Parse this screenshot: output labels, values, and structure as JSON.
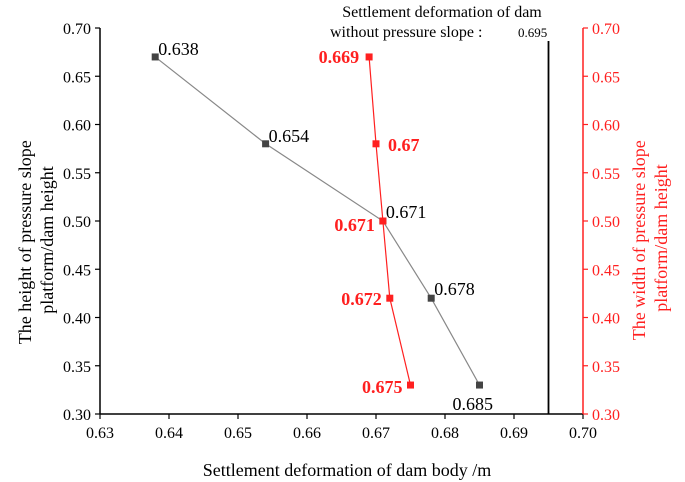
{
  "colors": {
    "left_axis": "#000000",
    "right_axis": "#ff2020",
    "black_series_line": "#888888",
    "black_series_marker": "#444444",
    "red_series": "#ff2020",
    "reference_line": "#000000"
  },
  "chart_data": {
    "type": "line",
    "xlabel": "Settlement deformation of dam body /m",
    "ylabel_left": "The height of pressure slope platform/dam height",
    "ylabel_right": "The width of pressure slope platform/dam height",
    "xlim": [
      0.63,
      0.7
    ],
    "ylim_left": [
      0.3,
      0.7
    ],
    "ylim_right": [
      0.3,
      0.7
    ],
    "x_ticks": [
      "0.63",
      "0.64",
      "0.65",
      "0.66",
      "0.67",
      "0.68",
      "0.69",
      "0.70"
    ],
    "y_ticks_left": [
      "0.30",
      "0.35",
      "0.40",
      "0.45",
      "0.50",
      "0.55",
      "0.60",
      "0.65",
      "0.70"
    ],
    "y_ticks_right": [
      "0.30",
      "0.35",
      "0.40",
      "0.45",
      "0.50",
      "0.55",
      "0.60",
      "0.65",
      "0.70"
    ],
    "grid": false,
    "series": [
      {
        "axis": "left",
        "color": "#444444",
        "points": [
          {
            "x": 0.638,
            "y": 0.67,
            "label": "0.638"
          },
          {
            "x": 0.654,
            "y": 0.58,
            "label": "0.654"
          },
          {
            "x": 0.671,
            "y": 0.5,
            "label": "0.671"
          },
          {
            "x": 0.678,
            "y": 0.42,
            "label": "0.678"
          },
          {
            "x": 0.685,
            "y": 0.33,
            "label": "0.685"
          }
        ]
      },
      {
        "axis": "right",
        "color": "#ff2020",
        "points": [
          {
            "x": 0.669,
            "y": 0.67,
            "label": "0.669"
          },
          {
            "x": 0.67,
            "y": 0.58,
            "label": "0.67"
          },
          {
            "x": 0.671,
            "y": 0.5,
            "label": "0.671"
          },
          {
            "x": 0.672,
            "y": 0.42,
            "label": "0.672"
          },
          {
            "x": 0.675,
            "y": 0.33,
            "label": "0.675"
          }
        ]
      }
    ],
    "reference_line": {
      "x": 0.695,
      "label_line1": "Settlement deformation of dam",
      "label_line2": "without pressure slope",
      "label_value": "0.695"
    }
  }
}
